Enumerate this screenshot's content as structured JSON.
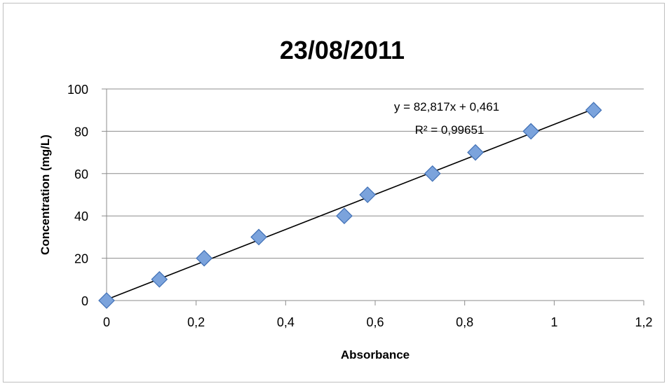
{
  "chart_data": {
    "type": "scatter",
    "title": "23/08/2011",
    "xlabel": "Absorbance",
    "ylabel": "Concentration (mg/L)",
    "xlim": [
      0,
      1.2
    ],
    "ylim": [
      0,
      100
    ],
    "x_ticks": [
      "0",
      "0,2",
      "0,4",
      "0,6",
      "0,8",
      "1",
      "1,2"
    ],
    "y_ticks": [
      "0",
      "20",
      "40",
      "60",
      "80",
      "100"
    ],
    "grid": "horizontal",
    "legend": "none",
    "series": [
      {
        "x": [
          0,
          0.118,
          0.218,
          0.34,
          0.531,
          0.583,
          0.728,
          0.824,
          0.948,
          1.088
        ],
        "y": [
          0,
          10,
          20,
          30,
          40,
          50,
          60,
          70,
          80,
          90
        ],
        "color": "#7ba3dc",
        "edge_color": "#3f6fb5"
      }
    ],
    "trendline": {
      "slope": 82.817,
      "intercept": 0.461,
      "x_range": [
        0,
        1.088
      ],
      "color": "#000000",
      "equation": "y = 82,817x + 0,461",
      "r_squared": "R² = 0,99651"
    }
  }
}
